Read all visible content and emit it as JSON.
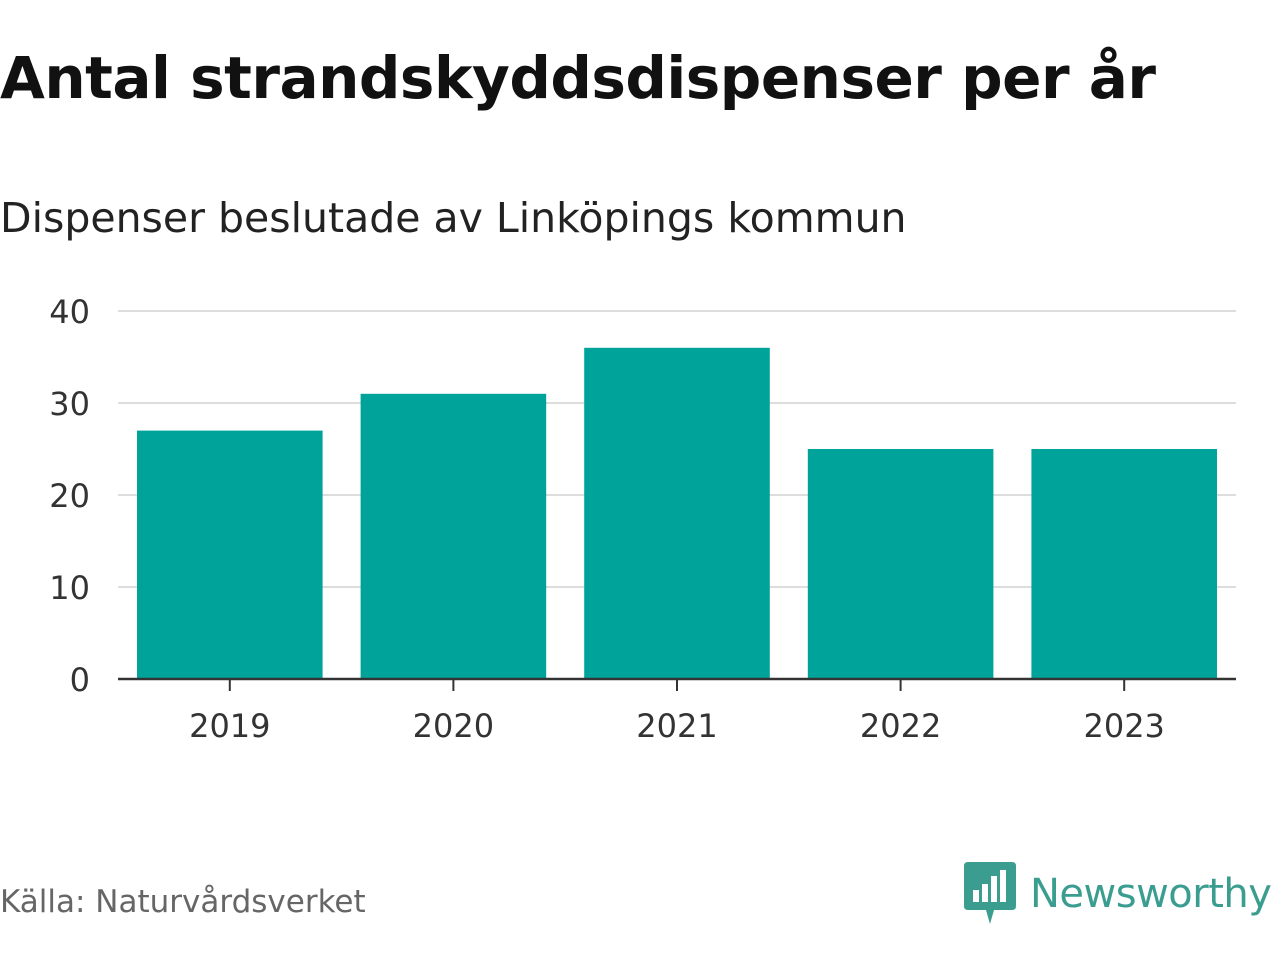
{
  "header": {
    "title": "Antal strandskyddsdispenser per år",
    "subtitle": "Dispenser beslutade av Linköpings kommun"
  },
  "footer": {
    "source": "Källa: Naturvårdsverket",
    "brand": "Newsworthy",
    "brand_icon": "newsworthy-logo-icon"
  },
  "colors": {
    "bar": "#00a39a",
    "grid": "#dddddd",
    "axis": "#333333",
    "brand": "#3a9d8f"
  },
  "chart_data": {
    "type": "bar",
    "title": "Antal strandskyddsdispenser per år",
    "subtitle": "Dispenser beslutade av Linköpings kommun",
    "categories": [
      "2019",
      "2020",
      "2021",
      "2022",
      "2023"
    ],
    "values": [
      27,
      31,
      36,
      25,
      25
    ],
    "xlabel": "",
    "ylabel": "",
    "ylim": [
      0,
      40
    ],
    "yticks": [
      "0",
      "10",
      "20",
      "30",
      "40"
    ],
    "grid": true,
    "legend": "none"
  }
}
